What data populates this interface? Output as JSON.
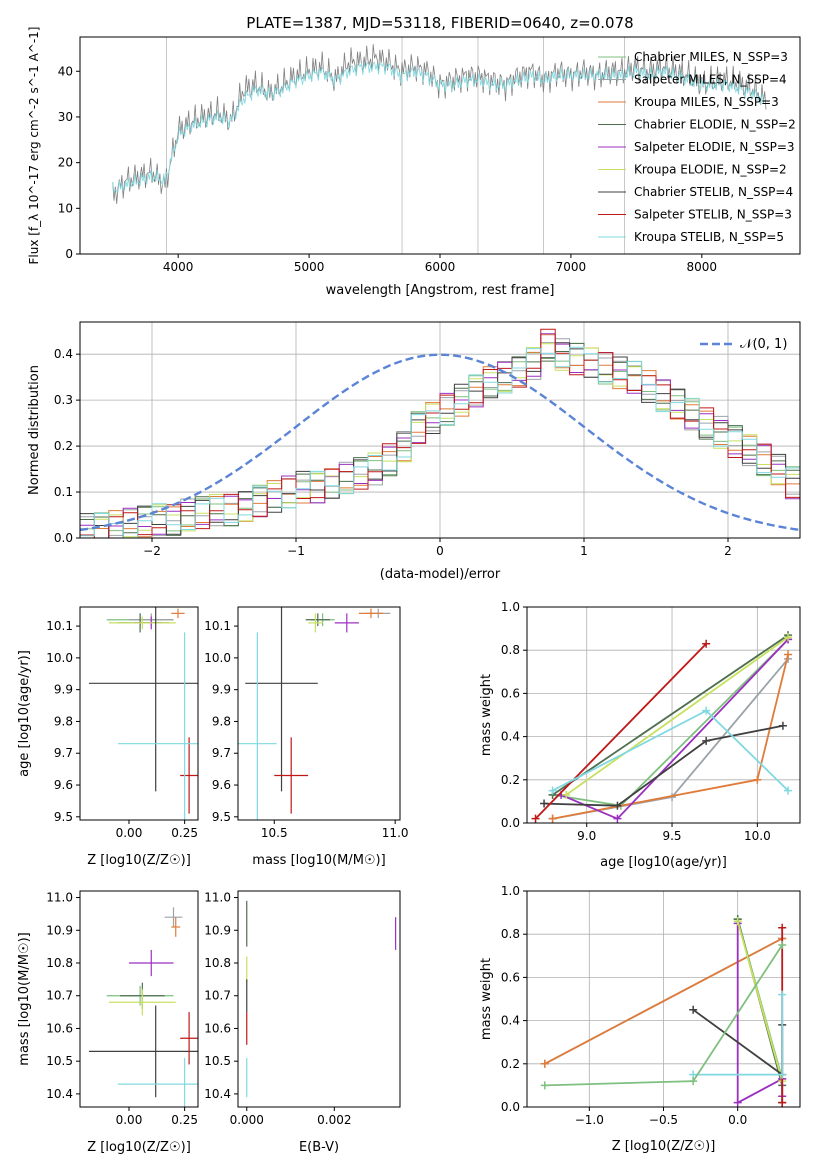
{
  "figure_title": "PLATE=1387, MJD=53118, FIBERID=0640, z=0.078",
  "colors": [
    "#7fbf7f",
    "#9ca3a8",
    "#e07b39",
    "#4f6f4f",
    "#9b30c0",
    "#c8e060",
    "#404040",
    "#c01818",
    "#80d8e0"
  ],
  "chart_data": [
    {
      "id": "spectrum",
      "type": "line",
      "title": "PLATE=1387, MJD=53118, FIBERID=0640, z=0.078",
      "xlabel": "wavelength [Angstrom, rest frame]",
      "ylabel": "Flux [f_λ 10^-17 erg cm^-2 s^-1 A^-1]",
      "xlim": [
        3250,
        8750
      ],
      "ylim": [
        0,
        47.5
      ],
      "xticks": [
        4000,
        5000,
        6000,
        7000,
        8000
      ],
      "yticks": [
        0,
        10,
        20,
        30,
        40
      ],
      "grid": false,
      "legend_position": "upper-right",
      "legend": [
        "Chabrier MILES, N_SSP=3",
        "Salpeter MILES, N_SSP=4",
        "Kroupa MILES, N_SSP=3",
        "Chabrier ELODIE, N_SSP=2",
        "Salpeter ELODIE, N_SSP=3",
        "Kroupa ELODIE, N_SSP=2",
        "Chabrier STELIB, N_SSP=4",
        "Salpeter STELIB, N_SSP=3",
        "Kroupa STELIB, N_SSP=5"
      ],
      "series": [
        {
          "name": "data",
          "x": [
            3500,
            3600,
            3700,
            3800,
            3900,
            4000,
            4100,
            4200,
            4300,
            4400,
            4500,
            4600,
            4700,
            4800,
            4900,
            5000,
            5100,
            5200,
            5300,
            5400,
            5500,
            5600,
            5700,
            5800,
            5900,
            6000,
            6100,
            6200,
            6300,
            6400,
            6500,
            6600,
            6700,
            6800,
            6900,
            7000,
            7100,
            7200,
            7300,
            7400,
            7500,
            7600,
            7700,
            7800,
            7900,
            8000,
            8100,
            8200,
            8300,
            8400,
            8500
          ],
          "y": [
            13,
            16,
            17,
            18,
            15,
            27,
            29,
            30,
            31,
            29,
            36,
            37,
            35,
            37,
            39,
            40,
            41,
            38,
            42,
            42,
            43,
            42,
            40,
            41,
            40,
            37,
            38,
            39,
            39,
            38,
            37,
            39,
            40,
            38,
            40,
            39,
            40,
            39,
            40,
            40,
            41,
            40,
            41,
            40,
            39,
            37,
            38,
            38,
            37,
            36,
            33
          ]
        },
        {
          "name": "model",
          "x": [
            3500,
            3600,
            3700,
            3800,
            3900,
            4000,
            4100,
            4200,
            4300,
            4400,
            4500,
            4600,
            4700,
            4800,
            4900,
            5000,
            5100,
            5200,
            5300,
            5400,
            5500,
            5600,
            5700,
            5800,
            5900,
            6000,
            6100,
            6200,
            6300,
            6400,
            6500,
            6600,
            6700,
            6800,
            6900,
            7000,
            7100,
            7200,
            7300,
            7400,
            7500,
            7600,
            7700,
            7800,
            7900,
            8000,
            8100,
            8200,
            8300,
            8400,
            8500
          ],
          "y": [
            14,
            15,
            16,
            17,
            16,
            26,
            28,
            29,
            30,
            29,
            34,
            36,
            35,
            36,
            38,
            39,
            40,
            38,
            40,
            41,
            41,
            41,
            39,
            40,
            39,
            37,
            37,
            38,
            38,
            37,
            37,
            38,
            39,
            38,
            39,
            39,
            39,
            39,
            39,
            39,
            40,
            39,
            40,
            39,
            38,
            37,
            37,
            37,
            36,
            35,
            33
          ]
        }
      ]
    },
    {
      "id": "residuals",
      "type": "histogram",
      "xlabel": "(data-model)/error",
      "ylabel": "Normed distribution",
      "xlim": [
        -2.5,
        2.5
      ],
      "ylim": [
        0,
        0.47
      ],
      "xticks": [
        -2,
        -1,
        0,
        1,
        2
      ],
      "yticks": [
        0.0,
        0.1,
        0.2,
        0.3,
        0.4
      ],
      "grid": true,
      "legend_position": "upper-right",
      "legend": [
        "𝒩(0, 1)"
      ],
      "bin_width": 0.1,
      "bin_start": -2.5,
      "values": [
        0.02,
        0.02,
        0.025,
        0.03,
        0.035,
        0.04,
        0.04,
        0.05,
        0.055,
        0.06,
        0.06,
        0.07,
        0.08,
        0.09,
        0.1,
        0.11,
        0.11,
        0.12,
        0.13,
        0.14,
        0.15,
        0.17,
        0.2,
        0.24,
        0.26,
        0.28,
        0.3,
        0.32,
        0.34,
        0.35,
        0.36,
        0.38,
        0.42,
        0.4,
        0.39,
        0.38,
        0.37,
        0.36,
        0.35,
        0.33,
        0.31,
        0.29,
        0.27,
        0.25,
        0.23,
        0.21,
        0.19,
        0.17,
        0.15,
        0.12
      ]
    },
    {
      "id": "age_vs_Z",
      "type": "errorbar",
      "xlabel": "Z [log10(Z/Z☉)]",
      "ylabel": "age  [log10(age/yr)]",
      "xlim": [
        -0.22,
        0.31
      ],
      "ylim": [
        9.49,
        10.16
      ],
      "xticks": [
        0.0,
        0.25
      ],
      "yticks": [
        9.5,
        9.6,
        9.7,
        9.8,
        9.9,
        10.0,
        10.1
      ],
      "points": [
        {
          "x": 0.05,
          "xerr": 0.15,
          "y": 10.12,
          "yerr": 0.02
        },
        {
          "x": 0.1,
          "xerr": 0.1,
          "y": 10.12,
          "yerr": 0.02
        },
        {
          "x": 0.22,
          "xerr": 0.03,
          "y": 10.14,
          "yerr": 0.015
        },
        {
          "x": 0.05,
          "xerr": 0.1,
          "y": 10.11,
          "yerr": 0.03
        },
        {
          "x": 0.1,
          "xerr": 0.08,
          "y": 10.11,
          "yerr": 0.02
        },
        {
          "x": 0.06,
          "xerr": 0.15,
          "y": 10.11,
          "yerr": 0.02
        },
        {
          "x": 0.12,
          "xerr": 0.3,
          "y": 9.92,
          "yerr": 0.34
        },
        {
          "x": 0.27,
          "xerr": 0.04,
          "y": 9.63,
          "yerr": 0.12
        },
        {
          "x": 0.25,
          "xerr": 0.3,
          "y": 9.73,
          "yerr": 0.35
        }
      ]
    },
    {
      "id": "age_vs_mass",
      "type": "errorbar",
      "xlabel": "mass [log10(M/M☉)]",
      "ylabel": "",
      "xlim": [
        10.35,
        11.02
      ],
      "ylim": [
        9.49,
        10.16
      ],
      "xticks": [
        10.5,
        11.0
      ],
      "yticks": [
        9.5,
        9.6,
        9.7,
        9.8,
        9.9,
        10.0,
        10.1
      ],
      "points": [
        {
          "x": 10.7,
          "xerr": 0.05,
          "y": 10.12,
          "yerr": 0.02
        },
        {
          "x": 10.93,
          "xerr": 0.05,
          "y": 10.14,
          "yerr": 0.015
        },
        {
          "x": 10.9,
          "xerr": 0.05,
          "y": 10.14,
          "yerr": 0.015
        },
        {
          "x": 10.68,
          "xerr": 0.05,
          "y": 10.12,
          "yerr": 0.02
        },
        {
          "x": 10.8,
          "xerr": 0.05,
          "y": 10.11,
          "yerr": 0.03
        },
        {
          "x": 10.67,
          "xerr": 0.03,
          "y": 10.11,
          "yerr": 0.03
        },
        {
          "x": 10.53,
          "xerr": 0.15,
          "y": 9.92,
          "yerr": 0.34
        },
        {
          "x": 10.57,
          "xerr": 0.07,
          "y": 9.63,
          "yerr": 0.12
        },
        {
          "x": 10.43,
          "xerr": 0.08,
          "y": 9.73,
          "yerr": 0.35
        }
      ]
    },
    {
      "id": "mass_weight_vs_age",
      "type": "line",
      "xlabel": "age  [log10(age/yr)]",
      "ylabel": "mass weight",
      "xlim": [
        8.65,
        10.25
      ],
      "ylim": [
        0,
        1
      ],
      "xticks": [
        9.0,
        9.5,
        10.0
      ],
      "yticks": [
        0.0,
        0.2,
        0.4,
        0.6,
        0.8,
        1.0
      ],
      "grid": true,
      "series": [
        {
          "x": [
            8.8,
            9.2,
            10.18
          ],
          "y": [
            0.13,
            0.08,
            0.85
          ]
        },
        {
          "x": [
            8.8,
            9.5,
            10.18
          ],
          "y": [
            0.02,
            0.12,
            0.76
          ]
        },
        {
          "x": [
            8.8,
            10.0,
            10.18
          ],
          "y": [
            0.02,
            0.2,
            0.78
          ]
        },
        {
          "x": [
            8.8,
            10.18
          ],
          "y": [
            0.13,
            0.87
          ]
        },
        {
          "x": [
            8.85,
            9.18,
            10.18
          ],
          "y": [
            0.13,
            0.02,
            0.85
          ]
        },
        {
          "x": [
            8.88,
            10.18
          ],
          "y": [
            0.13,
            0.86
          ]
        },
        {
          "x": [
            8.75,
            9.18,
            9.7,
            10.15
          ],
          "y": [
            0.09,
            0.08,
            0.38,
            0.45
          ]
        },
        {
          "x": [
            8.7,
            9.7
          ],
          "y": [
            0.02,
            0.83
          ]
        },
        {
          "x": [
            8.8,
            9.7,
            10.18
          ],
          "y": [
            0.15,
            0.52,
            0.15
          ]
        }
      ]
    },
    {
      "id": "mass_vs_Z",
      "type": "errorbar",
      "xlabel": "Z [log10(Z/Z☉)]",
      "ylabel": "mass [log10(M/M☉)]",
      "xlim": [
        -0.22,
        0.31
      ],
      "ylim": [
        10.36,
        11.02
      ],
      "xticks": [
        0.0,
        0.25
      ],
      "yticks": [
        10.4,
        10.5,
        10.6,
        10.7,
        10.8,
        10.9,
        11.0
      ],
      "points": [
        {
          "x": 0.05,
          "xerr": 0.15,
          "y": 10.7,
          "yerr": 0.03
        },
        {
          "x": 0.2,
          "xerr": 0.04,
          "y": 10.94,
          "yerr": 0.03
        },
        {
          "x": 0.21,
          "xerr": 0.02,
          "y": 10.91,
          "yerr": 0.03
        },
        {
          "x": 0.06,
          "xerr": 0.1,
          "y": 10.7,
          "yerr": 0.04
        },
        {
          "x": 0.1,
          "xerr": 0.1,
          "y": 10.8,
          "yerr": 0.04
        },
        {
          "x": 0.06,
          "xerr": 0.15,
          "y": 10.68,
          "yerr": 0.04
        },
        {
          "x": 0.12,
          "xerr": 0.3,
          "y": 10.53,
          "yerr": 0.14
        },
        {
          "x": 0.27,
          "xerr": 0.04,
          "y": 10.57,
          "yerr": 0.08
        },
        {
          "x": 0.25,
          "xerr": 0.3,
          "y": 10.43,
          "yerr": 0.08
        }
      ]
    },
    {
      "id": "mass_vs_EBV",
      "type": "errorbar",
      "xlabel": "E(B-V)",
      "ylabel": "",
      "xlim": [
        -0.0002,
        0.0035
      ],
      "ylim": [
        10.36,
        11.02
      ],
      "xticks": [
        0.0,
        0.002
      ],
      "yticks": [
        10.4,
        10.5,
        10.6,
        10.7,
        10.8,
        10.9,
        11.0
      ],
      "points": [
        {
          "x": 0.0,
          "y": 10.92,
          "yerr": 0.07
        },
        {
          "x": 0.0034,
          "y": 10.89,
          "yerr": 0.05
        },
        {
          "x": 0.0,
          "y": 10.78,
          "yerr": 0.04
        },
        {
          "x": 0.0,
          "y": 10.7,
          "yerr": 0.05
        },
        {
          "x": 0.0,
          "y": 10.6,
          "yerr": 0.05
        },
        {
          "x": 0.0,
          "y": 10.45,
          "yerr": 0.06
        }
      ]
    },
    {
      "id": "mass_weight_vs_Z",
      "type": "line",
      "xlabel": "Z [log10(Z/Z☉)]",
      "ylabel": "mass weight",
      "xlim": [
        -1.42,
        0.42
      ],
      "ylim": [
        0,
        1
      ],
      "xticks": [
        -1.0,
        -0.5,
        0.0
      ],
      "yticks": [
        0.0,
        0.2,
        0.4,
        0.6,
        0.8,
        1.0
      ],
      "grid": true,
      "series": [
        {
          "x": [
            0.0,
            0.3
          ],
          "y": [
            0.87,
            0.13
          ]
        },
        {
          "x": [
            -1.3,
            0.3
          ],
          "y": [
            0.2,
            0.78
          ]
        },
        {
          "x": [
            -1.3,
            0.3
          ],
          "y": [
            0.2,
            0.78
          ]
        },
        {
          "x": [
            0.0,
            0.3,
            0.3
          ],
          "y": [
            0.87,
            0.1,
            0.02
          ]
        },
        {
          "x": [
            0.0,
            0.0,
            0.3,
            0.3
          ],
          "y": [
            0.85,
            0.02,
            0.13,
            0.05
          ]
        },
        {
          "x": [
            0.0,
            0.3
          ],
          "y": [
            0.86,
            0.12
          ]
        },
        {
          "x": [
            -0.3,
            0.3,
            0.3
          ],
          "y": [
            0.45,
            0.15,
            0.38
          ]
        },
        {
          "x": [
            0.3,
            0.3
          ],
          "y": [
            0.83,
            0.02
          ]
        },
        {
          "x": [
            -0.3,
            0.3,
            0.3
          ],
          "y": [
            0.15,
            0.15,
            0.52
          ]
        },
        {
          "x": [
            -1.3,
            -0.3,
            0.3
          ],
          "y": [
            0.1,
            0.12,
            0.75
          ]
        }
      ]
    }
  ]
}
